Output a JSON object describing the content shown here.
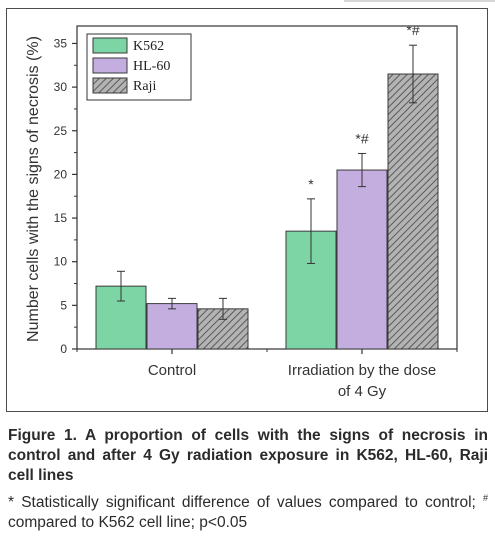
{
  "caption": {
    "title": "Figure 1. A proportion of cells with the signs of necrosis in control and after 4 Gy radiation exposure in K562, HL-60, Raji cell lines",
    "note_star": "*",
    "note_part1": " Statistically significant difference of values compared to control; ",
    "note_hash": "#",
    "note_part2": " compared to K562 cell line; p<0.05"
  },
  "chart_data": {
    "type": "bar",
    "title": "",
    "ylabel": "Number cells with the signs of necrosis (%)",
    "xlabel": "",
    "ylim": [
      0,
      37
    ],
    "yticks": [
      0,
      5,
      10,
      15,
      20,
      25,
      30,
      35
    ],
    "grid": false,
    "legend_position": "top-left",
    "categories": [
      {
        "lines": [
          "Control"
        ]
      },
      {
        "lines": [
          "Irradiation by the dose",
          "of 4 Gy"
        ]
      }
    ],
    "series": [
      {
        "name": "K562",
        "color": "#7dd4a4",
        "pattern": "solid",
        "values": [
          7.2,
          13.5
        ],
        "errors": [
          1.7,
          3.7
        ],
        "marks": [
          "",
          "*"
        ]
      },
      {
        "name": "HL-60",
        "color": "#c4aee0",
        "pattern": "solid",
        "values": [
          5.2,
          20.5
        ],
        "errors": [
          0.6,
          1.9
        ],
        "marks": [
          "",
          "*#"
        ]
      },
      {
        "name": "Raji",
        "color": "#9a9a9a",
        "pattern": "hatch",
        "values": [
          4.6,
          31.5
        ],
        "errors": [
          1.2,
          3.3
        ],
        "marks": [
          "",
          "*#"
        ]
      }
    ]
  }
}
